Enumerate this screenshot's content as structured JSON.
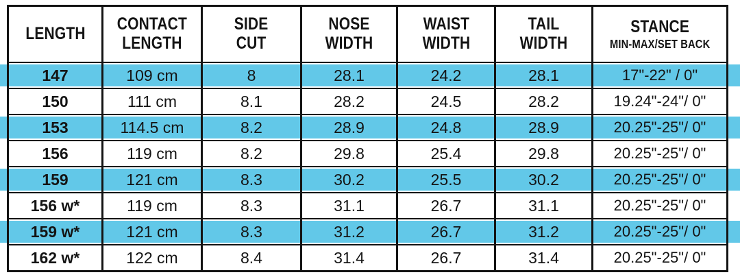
{
  "colors": {
    "highlight": "#62C8E8",
    "border": "#141414",
    "text": "#141414"
  },
  "table": {
    "headers": [
      {
        "l1": "LENGTH",
        "l2": "",
        "sub": ""
      },
      {
        "l1": "CONTACT",
        "l2": "LENGTH",
        "sub": ""
      },
      {
        "l1": "SIDE",
        "l2": "CUT",
        "sub": ""
      },
      {
        "l1": "NOSE",
        "l2": "WIDTH",
        "sub": ""
      },
      {
        "l1": "WAIST",
        "l2": "WIDTH",
        "sub": ""
      },
      {
        "l1": "TAIL",
        "l2": "WIDTH",
        "sub": ""
      },
      {
        "l1": "STANCE",
        "l2": "",
        "sub": "MIN-MAX/SET BACK"
      }
    ]
  },
  "chart_data": {
    "type": "table",
    "title": "Snowboard size chart",
    "columns": [
      "LENGTH",
      "CONTACT LENGTH",
      "SIDE CUT",
      "NOSE WIDTH",
      "WAIST WIDTH",
      "TAIL WIDTH",
      "STANCE MIN-MAX/SET BACK"
    ],
    "rows": [
      [
        "147",
        "109 cm",
        "8",
        "28.1",
        "24.2",
        "28.1",
        "17\"-22\" / 0\""
      ],
      [
        "150",
        "111 cm",
        "8.1",
        "28.2",
        "24.5",
        "28.2",
        "19.24\"-24\"/ 0\""
      ],
      [
        "153",
        "114.5 cm",
        "8.2",
        "28.9",
        "24.8",
        "28.9",
        "20.25\"-25\"/ 0\""
      ],
      [
        "156",
        "119 cm",
        "8.2",
        "29.8",
        "25.4",
        "29.8",
        "20.25\"-25\"/ 0\""
      ],
      [
        "159",
        "121 cm",
        "8.3",
        "30.2",
        "25.5",
        "30.2",
        "20.25\"-25\"/ 0\""
      ],
      [
        "156 w*",
        "119 cm",
        "8.3",
        "31.1",
        "26.7",
        "31.1",
        "20.25\"-25\"/ 0\""
      ],
      [
        "159 w*",
        "121 cm",
        "8.3",
        "31.2",
        "26.7",
        "31.2",
        "20.25\"-25\"/ 0\""
      ],
      [
        "162 w*",
        "122 cm",
        "8.4",
        "31.4",
        "26.7",
        "31.4",
        "20.25\"-25\"/ 0\""
      ]
    ],
    "highlighted_row_indices": [
      0,
      2,
      4,
      6
    ],
    "highlight_color": "#62C8E8",
    "layout": {
      "header_row": true,
      "grid": true,
      "stripes_full_bleed": true
    }
  }
}
